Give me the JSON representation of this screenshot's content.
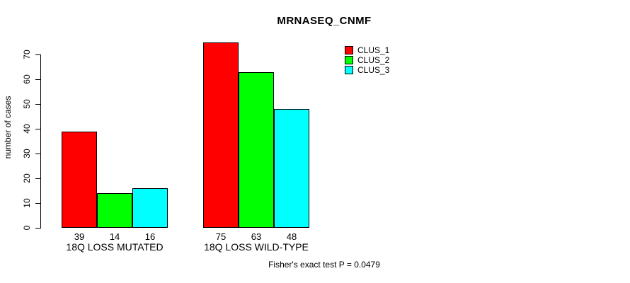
{
  "title": "MRNASEQ_CNMF",
  "y_axis_label": "number of cases",
  "footer": "Fisher's exact test P = 0.0479",
  "colors": {
    "clus_1": "#ff0000",
    "clus_2": "#00ff00",
    "clus_3": "#00ffff",
    "axis": "#000000",
    "background": "#ffffff"
  },
  "legend": {
    "items": [
      {
        "label": "CLUS_1",
        "color": "#ff0000"
      },
      {
        "label": "CLUS_2",
        "color": "#00ff00"
      },
      {
        "label": "CLUS_3",
        "color": "#00ffff"
      }
    ]
  },
  "chart_data": {
    "type": "bar",
    "title": "MRNASEQ_CNMF",
    "categories": [
      "18Q LOSS MUTATED",
      "18Q LOSS WILD-TYPE"
    ],
    "series": [
      {
        "name": "CLUS_1",
        "color": "#ff0000",
        "values": [
          39,
          75
        ]
      },
      {
        "name": "CLUS_2",
        "color": "#00ff00",
        "values": [
          14,
          63
        ]
      },
      {
        "name": "CLUS_3",
        "color": "#00ffff",
        "values": [
          16,
          48
        ]
      }
    ],
    "bar_value_labels": [
      [
        "39",
        "14",
        "16"
      ],
      [
        "75",
        "63",
        "48"
      ]
    ],
    "xlabel": "",
    "ylabel": "number of cases",
    "yticks": [
      "0",
      "10",
      "20",
      "30",
      "40",
      "50",
      "60",
      "70"
    ],
    "ylim": [
      0,
      78
    ],
    "grid": false,
    "legend_position": "top-right",
    "legend_box": false,
    "annotation": "Fisher's exact test P = 0.0479"
  }
}
